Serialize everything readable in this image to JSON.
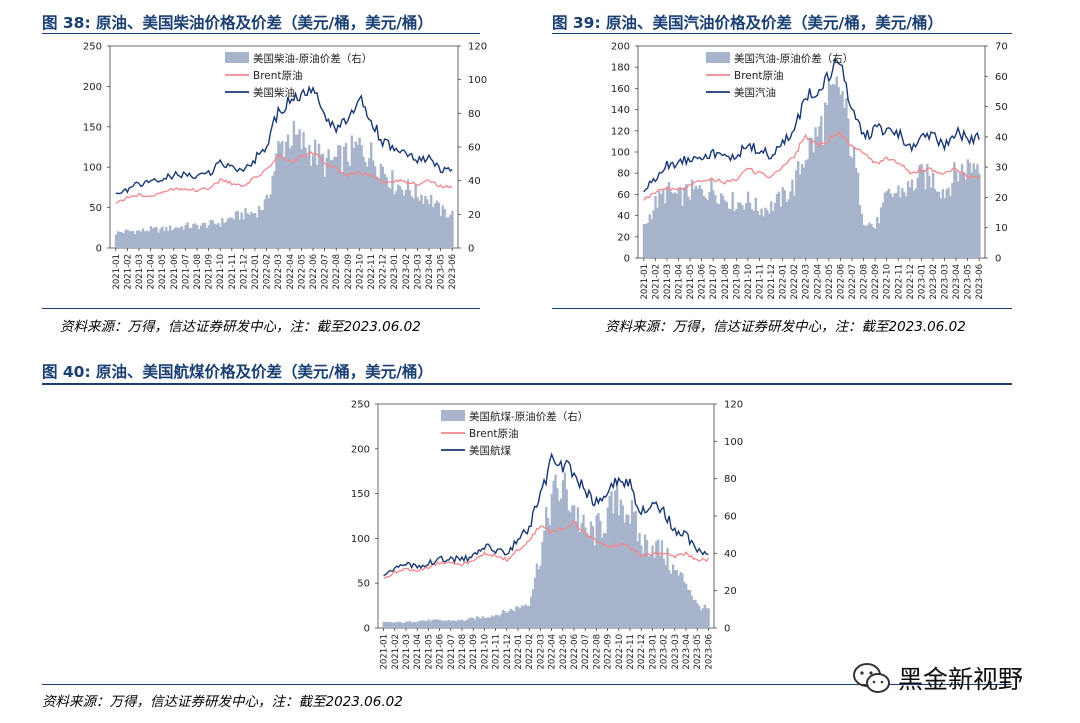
{
  "figures": [
    {
      "title": "图 38: 原油、美国柴油价格及价差（美元/桶，美元/桶）",
      "source": "资料来源：万得，信达证券研发中心，注：截至2023.06.02"
    },
    {
      "title": "图 39: 原油、美国汽油价格及价差（美元/桶，美元/桶）",
      "source": "资料来源：万得，信达证券研发中心，注：截至2023.06.02"
    },
    {
      "title": "图 40: 原油、美国航煤价格及价差（美元/桶，美元/桶）",
      "source": "资料来源：万得，信达证券研发中心，注：截至2023.06.02"
    }
  ],
  "watermark": {
    "text": "黑金新视野",
    "icon": "wechat-icon"
  },
  "colors": {
    "spread": "#a7b4cb",
    "brent": "#f2878e",
    "product": "#1a3773",
    "title": "#1a3f73"
  },
  "chart_data": [
    {
      "type": "line",
      "months": [
        "2021-01",
        "2021-02",
        "2021-03",
        "2021-04",
        "2021-05",
        "2021-06",
        "2021-07",
        "2021-08",
        "2021-09",
        "2021-10",
        "2021-11",
        "2021-12",
        "2022-01",
        "2022-02",
        "2022-03",
        "2022-04",
        "2022-05",
        "2022-06",
        "2022-07",
        "2022-08",
        "2022-09",
        "2022-10",
        "2022-11",
        "2022-12",
        "2023-01",
        "2023-02",
        "2023-03",
        "2023-04",
        "2023-05",
        "2023-06"
      ],
      "ylim_left": [
        0,
        250
      ],
      "yticks_left": [
        0,
        50,
        100,
        150,
        200,
        250
      ],
      "ylim_right": [
        0,
        120
      ],
      "yticks_right": [
        0,
        20,
        40,
        60,
        80,
        100,
        120
      ],
      "legend": [
        "美国柴油-原油价差（右）",
        "Brent原油",
        "美国柴油"
      ],
      "series": [
        {
          "name": "美国柴油-原油价差（右）",
          "kind": "area",
          "axis": "right",
          "values": [
            9,
            10,
            10,
            11,
            11,
            12,
            13,
            13,
            14,
            15,
            18,
            20,
            21,
            27,
            58,
            67,
            62,
            58,
            50,
            52,
            55,
            60,
            55,
            48,
            38,
            36,
            32,
            30,
            22,
            20
          ]
        },
        {
          "name": "Brent原油",
          "kind": "line",
          "axis": "left",
          "values": [
            55,
            62,
            66,
            64,
            68,
            73,
            74,
            71,
            74,
            84,
            80,
            76,
            87,
            97,
            115,
            106,
            112,
            118,
            105,
            98,
            90,
            93,
            90,
            81,
            83,
            83,
            79,
            84,
            76,
            76
          ]
        },
        {
          "name": "美国柴油",
          "kind": "line",
          "axis": "left",
          "values": [
            65,
            72,
            80,
            80,
            85,
            90,
            90,
            88,
            92,
            105,
            100,
            98,
            110,
            125,
            170,
            180,
            190,
            195,
            160,
            150,
            155,
            185,
            160,
            130,
            125,
            115,
            108,
            110,
            97,
            95
          ]
        }
      ]
    },
    {
      "type": "line",
      "months": [
        "2021-01",
        "2021-02",
        "2021-03",
        "2021-04",
        "2021-05",
        "2021-06",
        "2021-07",
        "2021-08",
        "2021-09",
        "2021-10",
        "2021-11",
        "2021-12",
        "2022-01",
        "2022-02",
        "2022-03",
        "2022-04",
        "2022-05",
        "2022-06",
        "2022-07",
        "2022-08",
        "2022-09",
        "2022-10",
        "2022-11",
        "2022-12",
        "2023-01",
        "2023-02",
        "2023-03",
        "2023-04",
        "2023-05",
        "2023-06"
      ],
      "ylim_left": [
        0,
        200
      ],
      "yticks_left": [
        0,
        20,
        40,
        60,
        80,
        100,
        120,
        140,
        160,
        180,
        200
      ],
      "ylim_right": [
        0,
        70
      ],
      "yticks_right": [
        0,
        10,
        20,
        30,
        40,
        50,
        60,
        70
      ],
      "legend": [
        "美国汽油-原油价差（右）",
        "Brent原油",
        "美国汽油"
      ],
      "series": [
        {
          "name": "美国汽油-原油价差（右）",
          "kind": "area",
          "axis": "right",
          "values": [
            10,
            18,
            22,
            20,
            22,
            22,
            23,
            20,
            18,
            19,
            16,
            17,
            20,
            24,
            35,
            40,
            50,
            56,
            36,
            13,
            10,
            20,
            22,
            23,
            27,
            26,
            22,
            28,
            30,
            32
          ]
        },
        {
          "name": "Brent原油",
          "kind": "line",
          "axis": "left",
          "values": [
            55,
            62,
            66,
            64,
            68,
            73,
            74,
            71,
            74,
            84,
            80,
            76,
            87,
            97,
            115,
            106,
            112,
            118,
            105,
            98,
            90,
            93,
            90,
            81,
            83,
            83,
            79,
            84,
            76,
            76
          ]
        },
        {
          "name": "美国汽油",
          "kind": "line",
          "axis": "left",
          "values": [
            63,
            75,
            88,
            90,
            95,
            97,
            98,
            95,
            97,
            105,
            102,
            96,
            108,
            120,
            150,
            160,
            172,
            185,
            140,
            115,
            120,
            122,
            118,
            103,
            112,
            115,
            108,
            118,
            112,
            115
          ]
        }
      ]
    },
    {
      "type": "line",
      "months": [
        "2021-01",
        "2021-02",
        "2021-03",
        "2021-04",
        "2021-05",
        "2021-06",
        "2021-07",
        "2021-08",
        "2021-09",
        "2021-10",
        "2021-11",
        "2021-12",
        "2022-01",
        "2022-02",
        "2022-03",
        "2022-04",
        "2022-05",
        "2022-06",
        "2022-07",
        "2022-08",
        "2022-09",
        "2022-10",
        "2022-11",
        "2022-12",
        "2023-01",
        "2023-02",
        "2023-03",
        "2023-04",
        "2023-05",
        "2023-06"
      ],
      "ylim_left": [
        0,
        250
      ],
      "yticks_left": [
        0,
        50,
        100,
        150,
        200,
        250
      ],
      "ylim_right": [
        0,
        120
      ],
      "yticks_right": [
        0,
        20,
        40,
        60,
        80,
        100,
        120
      ],
      "legend": [
        "美国航煤-原油价差（右）",
        "Brent原油",
        "美国航煤"
      ],
      "series": [
        {
          "name": "美国航煤-原油价差（右）",
          "kind": "area",
          "axis": "right",
          "values": [
            3,
            3,
            3,
            4,
            4,
            4,
            4,
            4,
            5,
            6,
            7,
            9,
            11,
            14,
            40,
            70,
            75,
            65,
            50,
            52,
            60,
            70,
            62,
            45,
            45,
            40,
            30,
            25,
            12,
            10
          ]
        },
        {
          "name": "Brent原油",
          "kind": "line",
          "axis": "left",
          "values": [
            55,
            62,
            66,
            64,
            68,
            73,
            74,
            71,
            74,
            84,
            80,
            76,
            87,
            97,
            115,
            106,
            112,
            118,
            105,
            98,
            90,
            93,
            90,
            81,
            83,
            83,
            79,
            84,
            76,
            76
          ]
        },
        {
          "name": "美国航煤",
          "kind": "line",
          "axis": "left",
          "values": [
            60,
            66,
            70,
            70,
            72,
            76,
            78,
            76,
            80,
            90,
            88,
            84,
            98,
            112,
            148,
            185,
            182,
            175,
            150,
            140,
            148,
            168,
            160,
            130,
            140,
            130,
            108,
            105,
            85,
            85
          ]
        }
      ]
    }
  ]
}
